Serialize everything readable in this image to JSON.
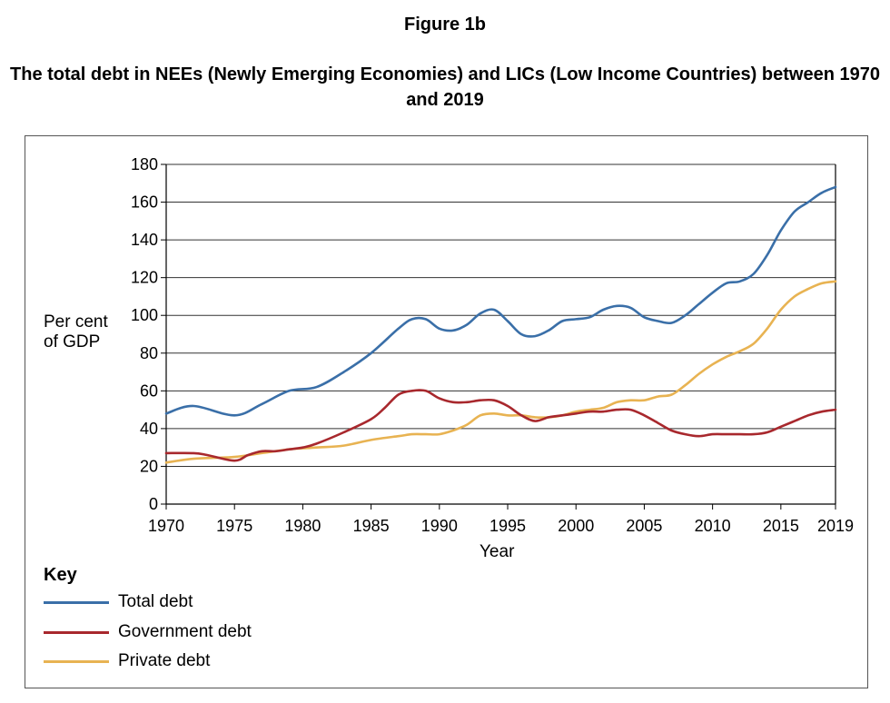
{
  "figure_label": "Figure 1b",
  "chart_data": {
    "type": "line",
    "title": "The total debt in NEEs (Newly Emerging Economies) and LICs (Low Income Countries) between 1970 and 2019",
    "xlabel": "Year",
    "ylabel": "Per cent of GDP",
    "xlim": [
      1970,
      2019
    ],
    "ylim": [
      0,
      180
    ],
    "x_ticks": [
      "1970",
      "1975",
      "1980",
      "1985",
      "1990",
      "1995",
      "2000",
      "2005",
      "2010",
      "2015",
      "2019"
    ],
    "y_ticks": [
      "0",
      "20",
      "40",
      "60",
      "80",
      "100",
      "120",
      "140",
      "160",
      "180"
    ],
    "grid": "horizontal",
    "legend_title": "Key",
    "legend_placement": "bottom-left",
    "series": [
      {
        "name": "Total debt",
        "color": "#3a6fa8",
        "x": [
          1970,
          1972,
          1975,
          1977,
          1979,
          1981,
          1983,
          1985,
          1987,
          1988,
          1989,
          1990,
          1991,
          1992,
          1993,
          1994,
          1995,
          1996,
          1997,
          1998,
          1999,
          2000,
          2001,
          2002,
          2003,
          2004,
          2005,
          2006,
          2007,
          2008,
          2009,
          2010,
          2011,
          2012,
          2013,
          2014,
          2015,
          2016,
          2017,
          2018,
          2019
        ],
        "y": [
          48,
          52,
          47,
          53,
          60,
          62,
          70,
          80,
          93,
          98,
          98,
          93,
          92,
          95,
          101,
          103,
          97,
          90,
          89,
          92,
          97,
          98,
          99,
          103,
          105,
          104,
          99,
          97,
          96,
          100,
          106,
          112,
          117,
          118,
          122,
          132,
          145,
          155,
          160,
          165,
          168
        ]
      },
      {
        "name": "Government debt",
        "color": "#a8282d",
        "x": [
          1970,
          1972,
          1973,
          1975,
          1976,
          1977,
          1978,
          1979,
          1980,
          1981,
          1983,
          1985,
          1986,
          1987,
          1988,
          1989,
          1990,
          1991,
          1992,
          1993,
          1994,
          1995,
          1996,
          1997,
          1998,
          1999,
          2000,
          2001,
          2002,
          2003,
          2004,
          2005,
          2006,
          2007,
          2008,
          2009,
          2010,
          2011,
          2012,
          2013,
          2014,
          2015,
          2016,
          2017,
          2018,
          2019
        ],
        "y": [
          27,
          27,
          26,
          23,
          26,
          28,
          28,
          29,
          30,
          32,
          38,
          45,
          51,
          58,
          60,
          60,
          56,
          54,
          54,
          55,
          55,
          52,
          47,
          44,
          46,
          47,
          48,
          49,
          49,
          50,
          50,
          47,
          43,
          39,
          37,
          36,
          37,
          37,
          37,
          37,
          38,
          41,
          44,
          47,
          49,
          50
        ]
      },
      {
        "name": "Private debt",
        "color": "#e8b352",
        "x": [
          1970,
          1972,
          1975,
          1977,
          1979,
          1981,
          1983,
          1985,
          1987,
          1988,
          1989,
          1990,
          1991,
          1992,
          1993,
          1994,
          1995,
          1996,
          1997,
          1998,
          1999,
          2000,
          2001,
          2002,
          2003,
          2004,
          2005,
          2006,
          2007,
          2008,
          2009,
          2010,
          2011,
          2012,
          2013,
          2014,
          2015,
          2016,
          2017,
          2018,
          2019
        ],
        "y": [
          22,
          24,
          25,
          27,
          29,
          30,
          31,
          34,
          36,
          37,
          37,
          37,
          39,
          42,
          47,
          48,
          47,
          47,
          46,
          46,
          47,
          49,
          50,
          51,
          54,
          55,
          55,
          57,
          58,
          63,
          69,
          74,
          78,
          81,
          85,
          93,
          103,
          110,
          114,
          117,
          118
        ]
      }
    ]
  }
}
